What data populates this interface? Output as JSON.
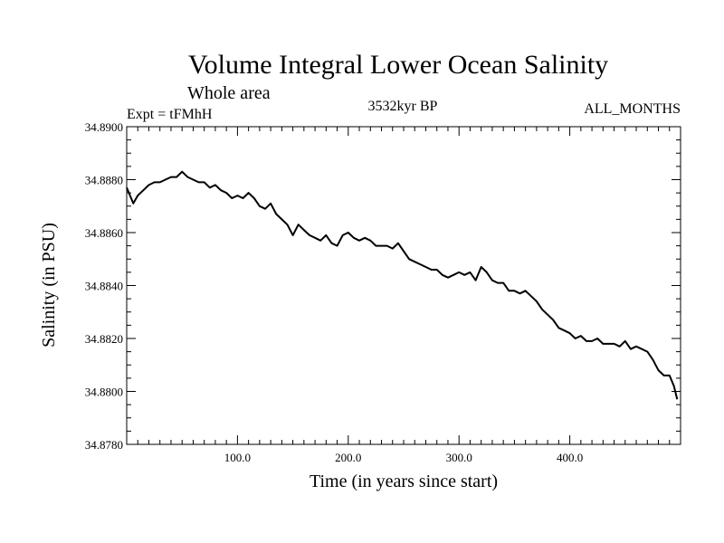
{
  "chart_data": {
    "type": "line",
    "title": "Volume Integral Lower Ocean Salinity",
    "subtitle": "Whole area",
    "left_label": "Expt = tFMhH",
    "center_label": "3532kyr BP",
    "right_label": "ALL_MONTHS",
    "xlabel": "Time (in years since start)",
    "ylabel": "Salinity (in PSU)",
    "xlim": [
      0,
      500
    ],
    "ylim": [
      34.878,
      34.89
    ],
    "x_ticks": [
      100,
      200,
      300,
      400
    ],
    "x_tick_labels": [
      "100.0",
      "200.0",
      "300.0",
      "400.0"
    ],
    "y_ticks": [
      34.878,
      34.88,
      34.882,
      34.884,
      34.886,
      34.888,
      34.89
    ],
    "y_tick_labels": [
      "34.8780",
      "34.8800",
      "34.8820",
      "34.8840",
      "34.8860",
      "34.8880",
      "34.8900"
    ],
    "series": [
      {
        "name": "Salinity",
        "x": [
          0,
          3,
          6,
          10,
          15,
          20,
          25,
          30,
          35,
          40,
          45,
          50,
          55,
          60,
          65,
          70,
          75,
          80,
          85,
          90,
          95,
          100,
          105,
          110,
          115,
          120,
          125,
          130,
          135,
          140,
          145,
          150,
          155,
          160,
          165,
          170,
          175,
          180,
          185,
          190,
          195,
          200,
          205,
          210,
          215,
          220,
          225,
          230,
          235,
          240,
          245,
          250,
          255,
          260,
          265,
          270,
          275,
          280,
          285,
          290,
          295,
          300,
          305,
          310,
          315,
          320,
          325,
          330,
          335,
          340,
          345,
          350,
          355,
          360,
          365,
          370,
          375,
          380,
          385,
          390,
          395,
          400,
          405,
          410,
          415,
          420,
          425,
          430,
          435,
          440,
          445,
          450,
          455,
          460,
          465,
          470,
          475,
          480,
          485,
          490,
          494,
          497
        ],
        "values": [
          34.8877,
          34.8874,
          34.8871,
          34.8874,
          34.8876,
          34.8878,
          34.8879,
          34.8879,
          34.888,
          34.8881,
          34.8881,
          34.8883,
          34.8881,
          34.888,
          34.8879,
          34.8879,
          34.8877,
          34.8878,
          34.8876,
          34.8875,
          34.8873,
          34.8874,
          34.8873,
          34.8875,
          34.8873,
          34.887,
          34.8869,
          34.8871,
          34.8867,
          34.8865,
          34.8863,
          34.8859,
          34.8863,
          34.8861,
          34.8859,
          34.8858,
          34.8857,
          34.8859,
          34.8856,
          34.8855,
          34.8859,
          34.886,
          34.8858,
          34.8857,
          34.8858,
          34.8857,
          34.8855,
          34.8855,
          34.8855,
          34.8854,
          34.8856,
          34.8853,
          34.885,
          34.8849,
          34.8848,
          34.8847,
          34.8846,
          34.8846,
          34.8844,
          34.8843,
          34.8844,
          34.8845,
          34.8844,
          34.8845,
          34.8842,
          34.8847,
          34.8845,
          34.8842,
          34.8841,
          34.8841,
          34.8838,
          34.8838,
          34.8837,
          34.8838,
          34.8836,
          34.8834,
          34.8831,
          34.8829,
          34.8827,
          34.8824,
          34.8823,
          34.8822,
          34.882,
          34.8821,
          34.8819,
          34.8819,
          34.882,
          34.8818,
          34.8818,
          34.8818,
          34.8817,
          34.8819,
          34.8816,
          34.8817,
          34.8816,
          34.8815,
          34.8812,
          34.8808,
          34.8806,
          34.8806,
          34.8802,
          34.8797
        ]
      }
    ]
  }
}
